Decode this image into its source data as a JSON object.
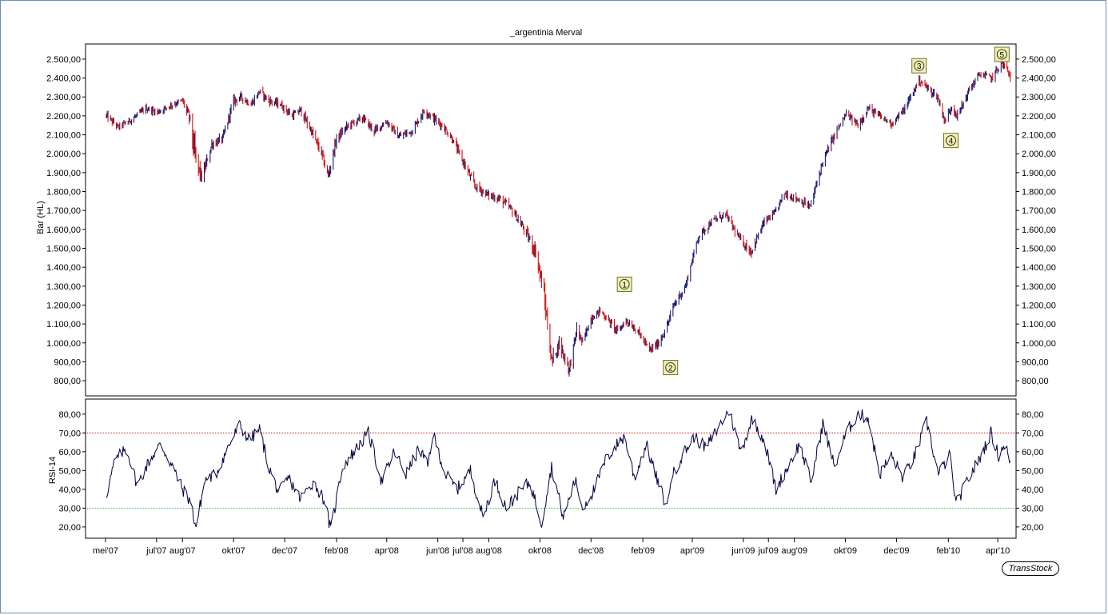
{
  "chart_data": [
    {
      "type": "bar",
      "panel": "price",
      "title": "_argentinia Merval",
      "ylabel": "Bar (HL)",
      "ylim": [
        720,
        2580
      ],
      "yticks": [
        800,
        900,
        1000,
        1100,
        1200,
        1300,
        1400,
        1500,
        1600,
        1700,
        1800,
        1900,
        2000,
        2100,
        2200,
        2300,
        2400,
        2500
      ],
      "ytick_labels": [
        "800,00",
        "900,00",
        "1.000,00",
        "1.100,00",
        "1.200,00",
        "1.300,00",
        "1.400,00",
        "1.500,00",
        "1.600,00",
        "1.700,00",
        "1.800,00",
        "1.900,00",
        "2.000,00",
        "2.100,00",
        "2.200,00",
        "2.300,00",
        "2.400,00",
        "2.500,00"
      ],
      "up_color": "#1a1a6e",
      "down_color": "#d01010",
      "bar_width_days": 2,
      "series": [
        {
          "x": [
            "2007-05-02",
            "2007-05-16",
            "2007-06-01",
            "2007-06-18",
            "2007-07-02",
            "2007-07-20",
            "2007-08-01",
            "2007-08-10",
            "2007-08-16",
            "2007-08-24",
            "2007-09-05",
            "2007-09-18",
            "2007-10-01",
            "2007-10-10",
            "2007-10-22",
            "2007-11-01",
            "2007-11-12",
            "2007-11-26",
            "2007-12-10",
            "2007-12-20",
            "2008-01-02",
            "2008-01-14",
            "2008-01-22",
            "2008-02-01",
            "2008-02-15",
            "2008-03-03",
            "2008-03-17",
            "2008-04-01",
            "2008-04-15",
            "2008-05-01",
            "2008-05-16",
            "2008-05-26",
            "2008-06-06",
            "2008-06-18",
            "2008-07-01",
            "2008-07-15",
            "2008-08-01",
            "2008-08-15",
            "2008-08-29",
            "2008-09-12",
            "2008-09-26",
            "2008-10-06",
            "2008-10-15",
            "2008-10-24",
            "2008-11-05",
            "2008-11-14",
            "2008-11-21",
            "2008-12-01",
            "2008-12-12",
            "2009-01-02",
            "2009-01-12",
            "2009-01-26",
            "2009-02-09",
            "2009-02-20",
            "2009-03-02",
            "2009-03-10",
            "2009-03-24",
            "2009-04-08",
            "2009-04-24",
            "2009-05-11",
            "2009-05-26",
            "2009-06-10",
            "2009-06-26",
            "2009-07-08",
            "2009-07-20",
            "2009-08-05",
            "2009-08-20",
            "2009-09-04",
            "2009-09-18",
            "2009-10-02",
            "2009-10-16",
            "2009-10-28",
            "2009-11-10",
            "2009-11-25",
            "2009-12-10",
            "2009-12-28",
            "2010-01-11",
            "2010-01-19",
            "2010-01-28",
            "2010-02-05",
            "2010-02-12",
            "2010-02-25",
            "2010-03-10",
            "2010-03-25",
            "2010-04-05",
            "2010-04-12",
            "2010-04-16"
          ],
          "y": [
            2200,
            2140,
            2180,
            2240,
            2220,
            2260,
            2280,
            2180,
            1980,
            1870,
            2050,
            2080,
            2280,
            2300,
            2260,
            2330,
            2280,
            2260,
            2200,
            2230,
            2120,
            2000,
            1880,
            2080,
            2150,
            2190,
            2120,
            2170,
            2090,
            2120,
            2230,
            2190,
            2150,
            2080,
            1960,
            1830,
            1780,
            1760,
            1700,
            1600,
            1480,
            1250,
            900,
            1000,
            860,
            1070,
            1000,
            1130,
            1170,
            1060,
            1120,
            1060,
            960,
            1000,
            1090,
            1200,
            1300,
            1560,
            1640,
            1680,
            1560,
            1480,
            1640,
            1680,
            1790,
            1760,
            1720,
            1960,
            2100,
            2210,
            2150,
            2240,
            2200,
            2160,
            2230,
            2390,
            2330,
            2300,
            2170,
            2250,
            2200,
            2330,
            2420,
            2400,
            2480,
            2450,
            2400
          ],
          "spread": [
            60,
            50,
            50,
            50,
            50,
            50,
            60,
            100,
            200,
            90,
            70,
            70,
            70,
            60,
            60,
            60,
            60,
            60,
            60,
            70,
            70,
            90,
            80,
            70,
            60,
            60,
            60,
            60,
            60,
            60,
            60,
            70,
            60,
            60,
            70,
            70,
            60,
            70,
            70,
            80,
            110,
            140,
            110,
            100,
            100,
            80,
            70,
            70,
            60,
            60,
            60,
            60,
            60,
            60,
            60,
            60,
            60,
            60,
            60,
            60,
            60,
            80,
            60,
            60,
            60,
            60,
            60,
            60,
            60,
            60,
            60,
            60,
            60,
            60,
            60,
            60,
            60,
            60,
            70,
            60,
            60,
            60,
            60,
            60,
            60,
            60,
            60
          ]
        }
      ],
      "annotations": [
        {
          "label": "1",
          "x": "2009-01-10",
          "y": 1310
        },
        {
          "label": "2",
          "x": "2009-03-06",
          "y": 870
        },
        {
          "label": "3",
          "x": "2009-12-28",
          "y": 2465
        },
        {
          "label": "4",
          "x": "2010-02-04",
          "y": 2070
        },
        {
          "label": "5",
          "x": "2010-04-06",
          "y": 2525
        }
      ]
    },
    {
      "type": "line",
      "panel": "indicator",
      "ylabel": "RSI-14",
      "ylim": [
        14,
        88
      ],
      "yticks": [
        20,
        30,
        40,
        50,
        60,
        70,
        80
      ],
      "ytick_labels": [
        "20,00",
        "30,00",
        "40,00",
        "50,00",
        "60,00",
        "70,00",
        "80,00"
      ],
      "reference_lines": [
        {
          "value": 70,
          "color": "#c00000"
        },
        {
          "value": 30,
          "color": "#20a020"
        }
      ],
      "line_color": "#000040",
      "series": [
        {
          "x": [
            "2007-05-02",
            "2007-05-12",
            "2007-05-26",
            "2007-06-08",
            "2007-06-22",
            "2007-07-06",
            "2007-07-20",
            "2007-08-01",
            "2007-08-10",
            "2007-08-17",
            "2007-08-28",
            "2007-09-10",
            "2007-09-24",
            "2007-10-08",
            "2007-10-20",
            "2007-11-01",
            "2007-11-12",
            "2007-11-24",
            "2007-12-06",
            "2007-12-20",
            "2008-01-04",
            "2008-01-18",
            "2008-01-25",
            "2008-02-08",
            "2008-02-22",
            "2008-03-10",
            "2008-03-26",
            "2008-04-10",
            "2008-04-24",
            "2008-05-10",
            "2008-05-20",
            "2008-05-26",
            "2008-06-10",
            "2008-06-24",
            "2008-07-10",
            "2008-07-25",
            "2008-08-08",
            "2008-08-22",
            "2008-09-05",
            "2008-09-19",
            "2008-10-03",
            "2008-10-15",
            "2008-10-29",
            "2008-11-12",
            "2008-11-21",
            "2008-12-05",
            "2008-12-19",
            "2009-01-03",
            "2009-01-10",
            "2009-01-22",
            "2009-02-05",
            "2009-02-18",
            "2009-03-02",
            "2009-03-06",
            "2009-03-20",
            "2009-04-03",
            "2009-04-17",
            "2009-05-01",
            "2009-05-15",
            "2009-05-29",
            "2009-06-12",
            "2009-06-26",
            "2009-07-10",
            "2009-07-24",
            "2009-08-07",
            "2009-08-21",
            "2009-09-04",
            "2009-09-18",
            "2009-10-02",
            "2009-10-16",
            "2009-10-28",
            "2009-11-11",
            "2009-11-25",
            "2009-12-09",
            "2009-12-23",
            "2010-01-06",
            "2010-01-20",
            "2010-02-03",
            "2010-02-10",
            "2010-02-24",
            "2010-03-10",
            "2010-03-24",
            "2010-04-02",
            "2010-04-10",
            "2010-04-18"
          ],
          "values": [
            37,
            55,
            62,
            42,
            55,
            64,
            52,
            40,
            34,
            20,
            45,
            48,
            62,
            74,
            66,
            72,
            52,
            38,
            46,
            35,
            44,
            34,
            18,
            52,
            60,
            70,
            44,
            60,
            48,
            62,
            52,
            70,
            48,
            40,
            50,
            25,
            45,
            30,
            38,
            44,
            22,
            52,
            25,
            45,
            30,
            40,
            56,
            65,
            68,
            46,
            64,
            45,
            30,
            45,
            58,
            68,
            62,
            72,
            82,
            60,
            78,
            66,
            40,
            52,
            64,
            44,
            75,
            52,
            70,
            80,
            78,
            48,
            58,
            46,
            58,
            76,
            48,
            58,
            32,
            45,
            56,
            70,
            58,
            65,
            48
          ]
        }
      ]
    }
  ],
  "x_axis": {
    "tick_dates": [
      "2007-05-01",
      "2007-07-01",
      "2007-08-01",
      "2007-10-01",
      "2007-12-01",
      "2008-02-01",
      "2008-04-01",
      "2008-06-01",
      "2008-07-01",
      "2008-08-01",
      "2008-10-01",
      "2008-12-01",
      "2009-02-01",
      "2009-04-01",
      "2009-06-01",
      "2009-07-01",
      "2009-08-01",
      "2009-10-01",
      "2009-12-01",
      "2010-02-01",
      "2010-04-01"
    ],
    "tick_labels": [
      "mei'07",
      "jul'07",
      "aug'07",
      "okt'07",
      "dec'07",
      "feb'08",
      "apr'08",
      "jun'08",
      "jul'08",
      "aug'08",
      "okt'08",
      "dec'08",
      "feb'09",
      "apr'09",
      "jun'09",
      "jul'09",
      "aug'09",
      "okt'09",
      "dec'09",
      "feb'10",
      "apr'10"
    ],
    "range": [
      "2007-04-10",
      "2010-04-20"
    ]
  },
  "watermark": "TransStock",
  "colors": {
    "frame": "#6a8fb8",
    "annotation_fill": "#f0f0b0",
    "annotation_border": "#707030"
  }
}
